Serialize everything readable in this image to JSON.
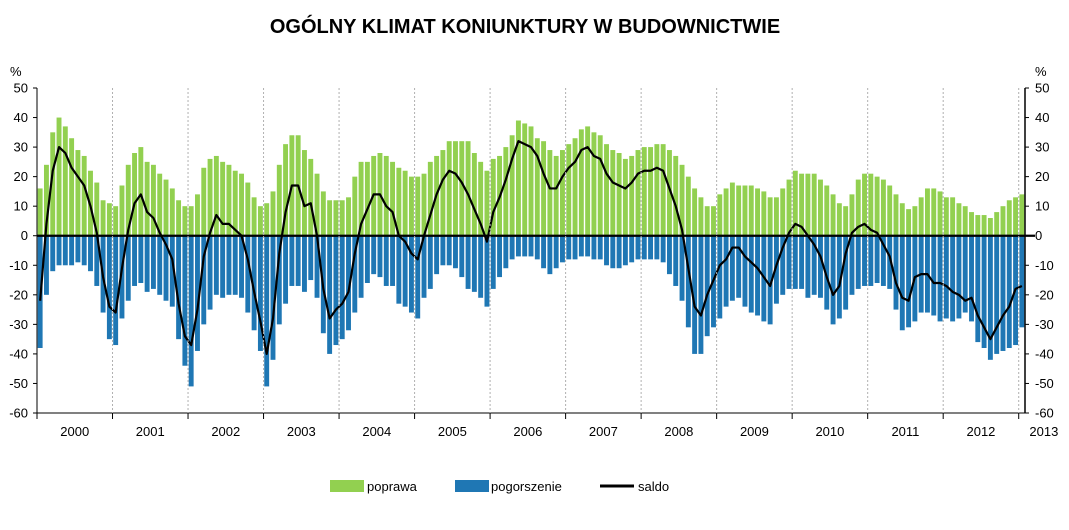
{
  "chart_data": {
    "type": "bar",
    "title": "OGÓLNY KLIMAT KONIUNKTURY W BUDOWNICTWIE",
    "ylabel_left": "%",
    "ylabel_right": "%",
    "ylim": [
      -60,
      50
    ],
    "yticks": [
      50,
      40,
      30,
      20,
      10,
      0,
      -10,
      -20,
      -30,
      -40,
      -50,
      -60
    ],
    "years": [
      "2000",
      "2001",
      "2002",
      "2003",
      "2004",
      "2005",
      "2006",
      "2007",
      "2008",
      "2009",
      "2010",
      "2011",
      "2012",
      "2013"
    ],
    "start": "2000-01",
    "end": "2013-05",
    "legend_position": "bottom",
    "colors": {
      "poprawa": "#92d050",
      "pogorszenie": "#1f77b4",
      "saldo": "#000000"
    },
    "series": [
      {
        "name": "poprawa",
        "values": [
          16,
          24,
          35,
          40,
          37,
          33,
          29,
          27,
          22,
          18,
          12,
          11,
          10,
          17,
          24,
          28,
          30,
          25,
          24,
          21,
          19,
          16,
          12,
          10,
          10,
          14,
          23,
          26,
          27,
          25,
          24,
          22,
          21,
          18,
          13,
          10,
          11,
          15,
          24,
          31,
          34,
          34,
          29,
          26,
          21,
          15,
          12,
          12,
          12,
          13,
          20,
          25,
          25,
          27,
          28,
          27,
          25,
          23,
          22,
          20,
          20,
          21,
          25,
          27,
          29,
          32,
          32,
          32,
          32,
          28,
          25,
          22,
          26,
          27,
          30,
          34,
          39,
          38,
          37,
          33,
          32,
          29,
          27,
          29,
          31,
          33,
          36,
          37,
          35,
          34,
          31,
          29,
          28,
          26,
          27,
          29,
          30,
          30,
          31,
          31,
          29,
          27,
          24,
          20,
          16,
          13,
          10,
          10,
          14,
          16,
          18,
          17,
          17,
          17,
          16,
          15,
          13,
          13,
          16,
          19,
          22,
          21,
          21,
          21,
          19,
          17,
          14,
          11,
          10,
          14,
          19,
          21,
          21,
          20,
          19,
          17,
          14,
          11,
          9,
          10,
          13,
          16,
          16,
          15,
          13,
          13,
          11,
          10,
          8,
          7,
          7,
          6,
          8,
          10,
          12,
          13,
          14
        ]
      },
      {
        "name": "pogorszenie",
        "values": [
          -38,
          -20,
          -12,
          -10,
          -10,
          -10,
          -9,
          -10,
          -12,
          -17,
          -26,
          -35,
          -37,
          -28,
          -22,
          -17,
          -16,
          -19,
          -18,
          -20,
          -22,
          -24,
          -35,
          -44,
          -51,
          -39,
          -30,
          -25,
          -20,
          -21,
          -20,
          -20,
          -21,
          -26,
          -32,
          -39,
          -51,
          -42,
          -30,
          -23,
          -17,
          -17,
          -19,
          -15,
          -21,
          -33,
          -40,
          -37,
          -35,
          -32,
          -26,
          -21,
          -16,
          -13,
          -14,
          -17,
          -17,
          -23,
          -24,
          -26,
          -28,
          -21,
          -18,
          -13,
          -10,
          -10,
          -11,
          -14,
          -18,
          -19,
          -21,
          -24,
          -18,
          -14,
          -11,
          -8,
          -7,
          -7,
          -7,
          -8,
          -11,
          -13,
          -11,
          -9,
          -8,
          -8,
          -7,
          -7,
          -8,
          -8,
          -10,
          -11,
          -11,
          -10,
          -9,
          -8,
          -8,
          -8,
          -8,
          -9,
          -13,
          -17,
          -22,
          -31,
          -40,
          -40,
          -34,
          -31,
          -28,
          -24,
          -22,
          -21,
          -24,
          -26,
          -27,
          -29,
          -30,
          -23,
          -20,
          -18,
          -18,
          -18,
          -21,
          -20,
          -21,
          -25,
          -30,
          -28,
          -25,
          -20,
          -18,
          -17,
          -17,
          -16,
          -17,
          -18,
          -25,
          -32,
          -31,
          -29,
          -26,
          -26,
          -27,
          -29,
          -28,
          -29,
          -28,
          -26,
          -29,
          -36,
          -38,
          -42,
          -40,
          -39,
          -38,
          -37,
          -31
        ]
      },
      {
        "name": "saldo",
        "values": [
          -22,
          4,
          22,
          30,
          28,
          23,
          20,
          17,
          10,
          1,
          -14,
          -24,
          -26,
          -11,
          2,
          11,
          14,
          8,
          6,
          1,
          -3,
          -8,
          -23,
          -34,
          -37,
          -25,
          -7,
          1,
          7,
          4,
          4,
          2,
          0,
          -8,
          -19,
          -29,
          -40,
          -28,
          -6,
          8,
          17,
          17,
          10,
          11,
          0,
          -18,
          -28,
          -25,
          -23,
          -19,
          -6,
          4,
          9,
          14,
          14,
          10,
          8,
          0,
          -2,
          -6,
          -8,
          0,
          7,
          14,
          19,
          22,
          21,
          18,
          14,
          9,
          4,
          -2,
          8,
          13,
          19,
          26,
          32,
          31,
          30,
          27,
          21,
          16,
          16,
          20,
          23,
          25,
          29,
          30,
          27,
          26,
          21,
          18,
          17,
          16,
          18,
          21,
          22,
          22,
          23,
          22,
          16,
          10,
          2,
          -11,
          -24,
          -27,
          -20,
          -15,
          -10,
          -8,
          -4,
          -4,
          -7,
          -9,
          -11,
          -14,
          -17,
          -10,
          -4,
          1,
          4,
          3,
          0,
          -3,
          -7,
          -14,
          -20,
          -17,
          -6,
          1,
          3,
          4,
          2,
          1,
          -3,
          -7,
          -16,
          -21,
          -22,
          -14,
          -13,
          -13,
          -16,
          -16,
          -17,
          -19,
          -20,
          -22,
          -21,
          -27,
          -31,
          -35,
          -31,
          -27,
          -24,
          -18,
          -17
        ]
      }
    ]
  }
}
